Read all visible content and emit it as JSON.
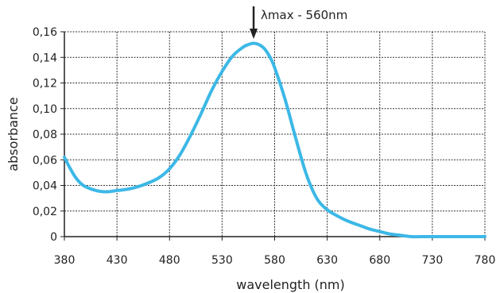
{
  "chart_data": {
    "type": "line",
    "xlabel": "wavelength (nm)",
    "ylabel": "absorbance",
    "xlim": [
      380,
      780
    ],
    "ylim": [
      0,
      0.16
    ],
    "x_ticks": [
      "380",
      "430",
      "480",
      "530",
      "580",
      "630",
      "680",
      "730",
      "780"
    ],
    "y_ticks": [
      "0",
      "0,02",
      "0,04",
      "0,06",
      "0,08",
      "0,10",
      "0,12",
      "0,14",
      "0,16"
    ],
    "grid": true,
    "colors": {
      "line": "#3cb8e6",
      "grid": "#333333",
      "axis": "#222222"
    },
    "series": [
      {
        "x": [
          380,
          385,
          390,
          395,
          400,
          410,
          420,
          430,
          440,
          450,
          460,
          470,
          480,
          490,
          500,
          510,
          520,
          530,
          540,
          550,
          555,
          560,
          565,
          570,
          575,
          580,
          590,
          600,
          610,
          620,
          630,
          640,
          650,
          660,
          670,
          680,
          690,
          700,
          710,
          720,
          740,
          760,
          780
        ],
        "y": [
          0.062,
          0.054,
          0.047,
          0.042,
          0.039,
          0.036,
          0.035,
          0.036,
          0.037,
          0.039,
          0.042,
          0.046,
          0.053,
          0.064,
          0.079,
          0.096,
          0.114,
          0.129,
          0.141,
          0.148,
          0.15,
          0.151,
          0.15,
          0.147,
          0.141,
          0.132,
          0.107,
          0.077,
          0.049,
          0.03,
          0.021,
          0.016,
          0.012,
          0.009,
          0.006,
          0.004,
          0.002,
          0.001,
          0.0,
          0.0,
          0.0,
          0.0,
          0.0
        ]
      }
    ],
    "annotation": {
      "text": "λmax - 560nm",
      "x": 560
    }
  }
}
